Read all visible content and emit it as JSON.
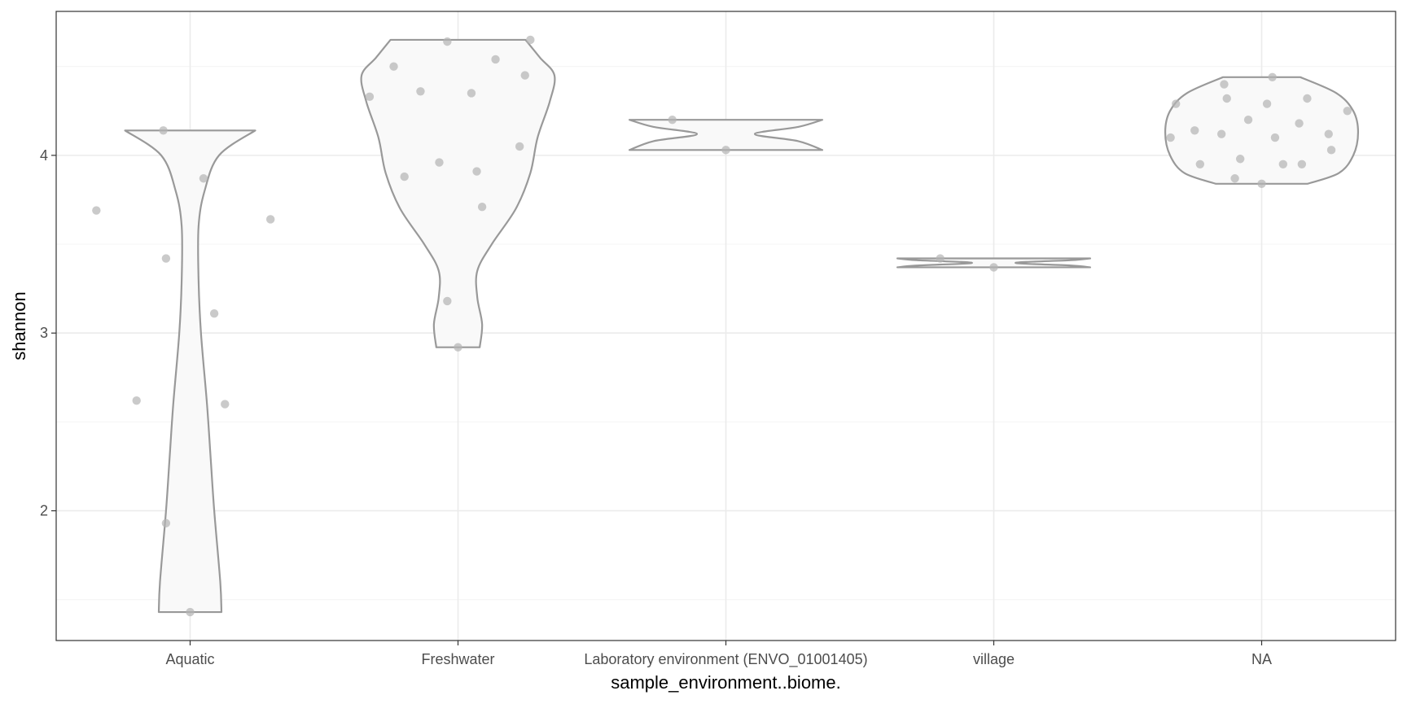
{
  "chart_data": {
    "type": "violin",
    "title": "",
    "xlabel": "sample_environment..biome.",
    "ylabel": "shannon",
    "categories": [
      "Aquatic",
      "Freshwater",
      "Laboratory environment (ENVO_01001405)",
      "village",
      "NA"
    ],
    "y_ticks": [
      2,
      3,
      4
    ],
    "ylim": [
      1.27,
      4.81
    ],
    "grid": true,
    "legend": "none",
    "colors": {
      "violin_fill": "#f9f9f9",
      "violin_stroke": "#999999",
      "point": "#b3b3b3",
      "grid_major": "#ebebeb",
      "grid_minor": "#f4f4f4",
      "panel_border": "#333333"
    },
    "series": [
      {
        "category": "Aquatic",
        "points": [
          {
            "x_offset": -0.35,
            "y": 3.69
          },
          {
            "x_offset": -0.2,
            "y": 2.62
          },
          {
            "x_offset": -0.1,
            "y": 4.14
          },
          {
            "x_offset": -0.09,
            "y": 3.42
          },
          {
            "x_offset": -0.09,
            "y": 1.93
          },
          {
            "x_offset": 0.0,
            "y": 1.43
          },
          {
            "x_offset": 0.05,
            "y": 3.87
          },
          {
            "x_offset": 0.09,
            "y": 3.11
          },
          {
            "x_offset": 0.13,
            "y": 2.6
          },
          {
            "x_offset": 0.3,
            "y": 3.64
          }
        ]
      },
      {
        "category": "Freshwater",
        "points": [
          {
            "x_offset": -0.33,
            "y": 4.33
          },
          {
            "x_offset": -0.24,
            "y": 4.5
          },
          {
            "x_offset": -0.2,
            "y": 3.88
          },
          {
            "x_offset": -0.14,
            "y": 4.36
          },
          {
            "x_offset": -0.07,
            "y": 3.96
          },
          {
            "x_offset": -0.04,
            "y": 4.64
          },
          {
            "x_offset": -0.04,
            "y": 3.18
          },
          {
            "x_offset": 0.0,
            "y": 2.92
          },
          {
            "x_offset": 0.05,
            "y": 4.35
          },
          {
            "x_offset": 0.07,
            "y": 3.91
          },
          {
            "x_offset": 0.09,
            "y": 3.71
          },
          {
            "x_offset": 0.14,
            "y": 4.54
          },
          {
            "x_offset": 0.23,
            "y": 4.05
          },
          {
            "x_offset": 0.25,
            "y": 4.45
          },
          {
            "x_offset": 0.27,
            "y": 4.65
          }
        ]
      },
      {
        "category": "Laboratory environment (ENVO_01001405)",
        "points": [
          {
            "x_offset": -0.2,
            "y": 4.2
          },
          {
            "x_offset": 0.0,
            "y": 4.03
          }
        ]
      },
      {
        "category": "village",
        "points": [
          {
            "x_offset": -0.2,
            "y": 3.42
          },
          {
            "x_offset": 0.0,
            "y": 3.37
          }
        ]
      },
      {
        "category": "NA",
        "points": [
          {
            "x_offset": -0.34,
            "y": 4.1
          },
          {
            "x_offset": -0.32,
            "y": 4.29
          },
          {
            "x_offset": -0.25,
            "y": 4.14
          },
          {
            "x_offset": -0.23,
            "y": 3.95
          },
          {
            "x_offset": -0.15,
            "y": 4.12
          },
          {
            "x_offset": -0.14,
            "y": 4.4
          },
          {
            "x_offset": -0.13,
            "y": 4.32
          },
          {
            "x_offset": -0.1,
            "y": 3.87
          },
          {
            "x_offset": -0.08,
            "y": 3.98
          },
          {
            "x_offset": -0.05,
            "y": 4.2
          },
          {
            "x_offset": 0.0,
            "y": 3.84
          },
          {
            "x_offset": 0.02,
            "y": 4.29
          },
          {
            "x_offset": 0.04,
            "y": 4.44
          },
          {
            "x_offset": 0.05,
            "y": 4.1
          },
          {
            "x_offset": 0.08,
            "y": 3.95
          },
          {
            "x_offset": 0.14,
            "y": 4.18
          },
          {
            "x_offset": 0.15,
            "y": 3.95
          },
          {
            "x_offset": 0.17,
            "y": 4.32
          },
          {
            "x_offset": 0.25,
            "y": 4.12
          },
          {
            "x_offset": 0.26,
            "y": 4.03
          },
          {
            "x_offset": 0.32,
            "y": 4.25
          }
        ]
      }
    ],
    "violin_outlines": [
      {
        "category": "Aquatic",
        "profile": [
          [
            1.43,
            0.13
          ],
          [
            1.6,
            0.125
          ],
          [
            2.0,
            0.1
          ],
          [
            2.3,
            0.085
          ],
          [
            2.6,
            0.07
          ],
          [
            3.0,
            0.045
          ],
          [
            3.3,
            0.035
          ],
          [
            3.6,
            0.035
          ],
          [
            3.8,
            0.06
          ],
          [
            4.0,
            0.12
          ],
          [
            4.14,
            0.27
          ]
        ],
        "profile_units": "half-width in category units, scaled in drawing"
      },
      {
        "category": "Freshwater",
        "profile": [
          [
            2.92,
            0.09
          ],
          [
            3.05,
            0.1
          ],
          [
            3.2,
            0.08
          ],
          [
            3.35,
            0.08
          ],
          [
            3.5,
            0.14
          ],
          [
            3.7,
            0.24
          ],
          [
            3.9,
            0.3
          ],
          [
            4.1,
            0.33
          ],
          [
            4.3,
            0.38
          ],
          [
            4.45,
            0.4
          ],
          [
            4.55,
            0.34
          ],
          [
            4.65,
            0.28
          ]
        ]
      },
      {
        "category": "Laboratory environment (ENVO_01001405)",
        "profile": [
          [
            4.03,
            0.4
          ],
          [
            4.08,
            0.3
          ],
          [
            4.12,
            0.12
          ],
          [
            4.16,
            0.3
          ],
          [
            4.2,
            0.4
          ]
        ]
      },
      {
        "category": "village",
        "profile": [
          [
            3.37,
            0.4
          ],
          [
            3.38,
            0.32
          ],
          [
            3.395,
            0.09
          ],
          [
            3.41,
            0.32
          ],
          [
            3.42,
            0.4
          ]
        ]
      },
      {
        "category": "NA",
        "profile": [
          [
            3.84,
            0.19
          ],
          [
            3.9,
            0.32
          ],
          [
            4.0,
            0.38
          ],
          [
            4.13,
            0.4
          ],
          [
            4.25,
            0.38
          ],
          [
            4.35,
            0.31
          ],
          [
            4.44,
            0.16
          ]
        ]
      }
    ]
  }
}
